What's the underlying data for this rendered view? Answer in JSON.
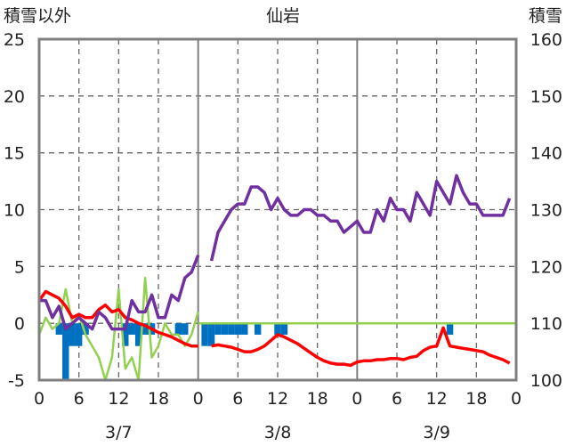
{
  "chart_data": {
    "type": "line",
    "title": "仙岩",
    "ylabel_left": "積雪以外",
    "ylabel_right": "積雪",
    "y_left": {
      "min": -5,
      "max": 25,
      "ticks": [
        "25",
        "20",
        "15",
        "10",
        "5",
        "0",
        "-5"
      ]
    },
    "y_right": {
      "min": 100,
      "max": 160,
      "ticks": [
        "160",
        "150",
        "140",
        "130",
        "120",
        "110",
        "100"
      ]
    },
    "x": {
      "min": 0,
      "max": 72,
      "tick_positions": [
        0,
        6,
        12,
        18,
        24,
        30,
        36,
        42,
        48,
        54,
        60,
        66,
        72
      ],
      "tick_labels": [
        "0",
        "6",
        "12",
        "18",
        "0",
        "6",
        "12",
        "18",
        "0",
        "6",
        "12",
        "18",
        "0"
      ],
      "day_labels": [
        "3/7",
        "3/8",
        "3/9"
      ],
      "day_centers": [
        12,
        36,
        60
      ]
    },
    "grid": true,
    "colors": {
      "snow_depth": "#7030a0",
      "temperature": "#ff0000",
      "wind": "#92d050",
      "precip": "#0070c0"
    },
    "series": [
      {
        "key": "snow_depth",
        "axis": "right",
        "segments": [
          [
            [
              0,
              114
            ],
            [
              1,
              114
            ],
            [
              2,
              111
            ],
            [
              3,
              113
            ],
            [
              4,
              109
            ],
            [
              5,
              110
            ],
            [
              6,
              111
            ],
            [
              7,
              110
            ],
            [
              8,
              109
            ],
            [
              9,
              112
            ],
            [
              10,
              111
            ],
            [
              11,
              109
            ],
            [
              12,
              109
            ],
            [
              13,
              109
            ],
            [
              14,
              114
            ],
            [
              15,
              112
            ],
            [
              16,
              112
            ],
            [
              17,
              115
            ],
            [
              18,
              111
            ],
            [
              19,
              111
            ],
            [
              20,
              115
            ],
            [
              21,
              114
            ],
            [
              22,
              118
            ],
            [
              23,
              119
            ],
            [
              24,
              122
            ]
          ],
          [
            [
              26,
              121
            ],
            [
              27,
              126
            ],
            [
              28,
              128
            ],
            [
              29,
              130
            ],
            [
              30,
              131
            ],
            [
              31,
              131
            ],
            [
              32,
              134
            ],
            [
              33,
              134
            ],
            [
              34,
              133
            ],
            [
              35,
              130
            ],
            [
              36,
              132
            ],
            [
              37,
              130
            ],
            [
              38,
              129
            ],
            [
              39,
              129
            ],
            [
              40,
              130
            ],
            [
              41,
              130
            ],
            [
              42,
              129
            ],
            [
              43,
              129
            ],
            [
              44,
              128
            ],
            [
              45,
              128
            ],
            [
              46,
              126
            ],
            [
              47,
              127
            ],
            [
              48,
              128
            ],
            [
              49,
              126
            ],
            [
              50,
              126
            ],
            [
              51,
              130
            ],
            [
              52,
              128
            ],
            [
              53,
              132
            ],
            [
              54,
              130
            ],
            [
              55,
              130
            ],
            [
              56,
              128
            ],
            [
              57,
              133
            ],
            [
              58,
              131
            ],
            [
              59,
              129
            ],
            [
              60,
              135
            ],
            [
              61,
              133
            ],
            [
              62,
              131
            ],
            [
              63,
              136
            ],
            [
              64,
              133
            ],
            [
              65,
              131
            ],
            [
              66,
              131
            ],
            [
              67,
              129
            ],
            [
              68,
              129
            ],
            [
              69,
              129
            ],
            [
              70,
              129
            ],
            [
              71,
              132
            ]
          ]
        ]
      },
      {
        "key": "temperature",
        "axis": "left",
        "segments": [
          [
            [
              0,
              2
            ],
            [
              1,
              2.8
            ],
            [
              2,
              2.5
            ],
            [
              3,
              2.2
            ],
            [
              4,
              1.5
            ],
            [
              5,
              0.5
            ],
            [
              6,
              0.8
            ],
            [
              7,
              0.5
            ],
            [
              8,
              0.5
            ],
            [
              9,
              1.2
            ],
            [
              10,
              1.6
            ],
            [
              11,
              1.0
            ],
            [
              12,
              1.2
            ],
            [
              13,
              0.5
            ],
            [
              14,
              0.3
            ],
            [
              15,
              0
            ],
            [
              16,
              -0.2
            ],
            [
              17,
              -0.5
            ],
            [
              18,
              -0.8
            ],
            [
              19,
              -1.0
            ],
            [
              20,
              -1.2
            ],
            [
              21,
              -1.5
            ],
            [
              22,
              -1.8
            ],
            [
              23,
              -2.0
            ],
            [
              24,
              -2.0
            ]
          ],
          [
            [
              26,
              -2.0
            ],
            [
              27,
              -1.9
            ],
            [
              28,
              -2.0
            ],
            [
              29,
              -2.1
            ],
            [
              30,
              -2.3
            ],
            [
              31,
              -2.5
            ],
            [
              32,
              -2.5
            ],
            [
              33,
              -2.3
            ],
            [
              34,
              -2.0
            ],
            [
              35,
              -1.5
            ],
            [
              36,
              -1.0
            ],
            [
              37,
              -1.2
            ],
            [
              38,
              -1.5
            ],
            [
              39,
              -1.8
            ],
            [
              40,
              -2.2
            ],
            [
              41,
              -2.6
            ],
            [
              42,
              -3.0
            ],
            [
              43,
              -3.3
            ],
            [
              44,
              -3.5
            ],
            [
              45,
              -3.6
            ],
            [
              46,
              -3.6
            ],
            [
              47,
              -3.7
            ],
            [
              48,
              -3.4
            ],
            [
              49,
              -3.3
            ],
            [
              50,
              -3.3
            ],
            [
              51,
              -3.2
            ],
            [
              52,
              -3.2
            ],
            [
              53,
              -3.1
            ],
            [
              54,
              -3.1
            ],
            [
              55,
              -3.2
            ],
            [
              56,
              -3.0
            ],
            [
              57,
              -2.9
            ],
            [
              58,
              -2.4
            ],
            [
              59,
              -2.1
            ],
            [
              60,
              -2.0
            ],
            [
              61,
              -0.4
            ],
            [
              62,
              -2.0
            ],
            [
              63,
              -2.1
            ],
            [
              64,
              -2.2
            ],
            [
              65,
              -2.3
            ],
            [
              66,
              -2.4
            ],
            [
              67,
              -2.5
            ],
            [
              68,
              -2.8
            ],
            [
              69,
              -3.0
            ],
            [
              70,
              -3.2
            ],
            [
              71,
              -3.5
            ]
          ]
        ]
      },
      {
        "key": "wind",
        "axis": "left",
        "segments": [
          [
            [
              0,
              -1
            ],
            [
              1,
              0.5
            ],
            [
              2,
              -0.5
            ],
            [
              3,
              0
            ],
            [
              4,
              3
            ],
            [
              5,
              0
            ],
            [
              6,
              0.8
            ],
            [
              7,
              -1
            ],
            [
              8,
              -2
            ],
            [
              9,
              -3
            ],
            [
              10,
              -5
            ],
            [
              11,
              -3
            ],
            [
              12,
              3
            ],
            [
              13,
              -4
            ],
            [
              14,
              -3
            ],
            [
              15,
              -5
            ],
            [
              16,
              4
            ],
            [
              17,
              -3
            ],
            [
              18,
              -2
            ],
            [
              19,
              0
            ],
            [
              20,
              -1
            ],
            [
              21,
              -1
            ],
            [
              22,
              -2
            ],
            [
              23,
              -1
            ],
            [
              24,
              1
            ]
          ],
          [
            [
              24,
              0
            ],
            [
              72,
              0
            ]
          ]
        ]
      },
      {
        "key": "precip",
        "axis": "left",
        "type": "bar",
        "bars": [
          [
            3,
            -1
          ],
          [
            4,
            -5
          ],
          [
            5,
            -2
          ],
          [
            6,
            -2
          ],
          [
            7,
            -1
          ],
          [
            13,
            -2
          ],
          [
            14,
            -1
          ],
          [
            15,
            -2
          ],
          [
            16,
            -1
          ],
          [
            17,
            -1
          ],
          [
            21,
            -1
          ],
          [
            22,
            -1
          ],
          [
            25,
            -2
          ],
          [
            26,
            -2
          ],
          [
            27,
            -1
          ],
          [
            28,
            -1
          ],
          [
            29,
            -1
          ],
          [
            30,
            -1
          ],
          [
            31,
            -1
          ],
          [
            33,
            -1
          ],
          [
            36,
            -1
          ],
          [
            37,
            -1
          ],
          [
            62,
            -1
          ]
        ]
      }
    ]
  }
}
